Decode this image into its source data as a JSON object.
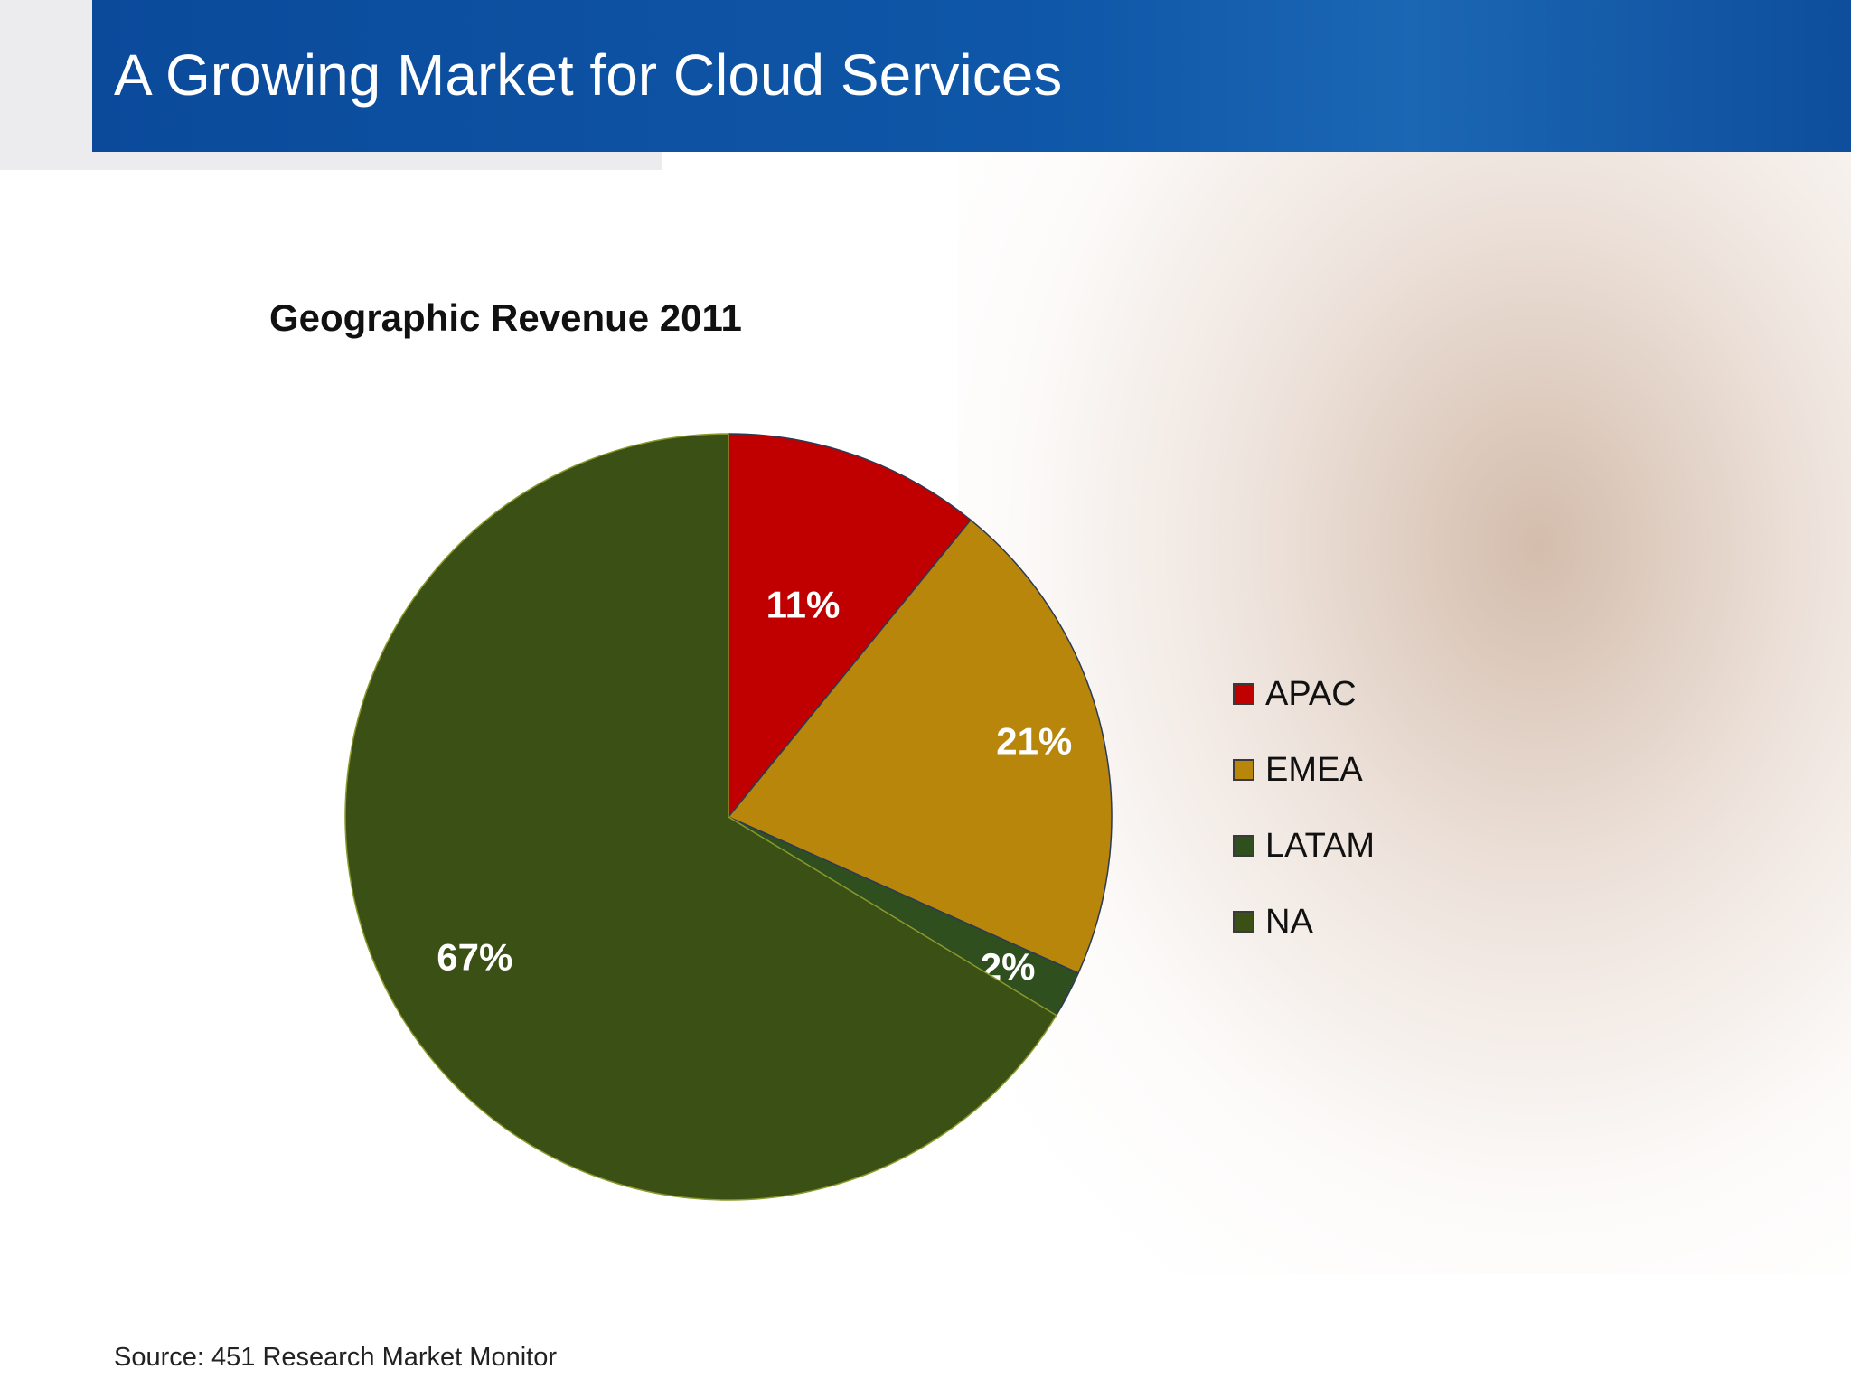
{
  "slide": {
    "title": "A Growing Market for Cloud Services",
    "source": "Source: 451 Research Market Monitor"
  },
  "colors": {
    "title_bar": "#0f57a8",
    "APAC": "#c00000",
    "EMEA": "#b8860b",
    "LATAM": "#2f4f1f",
    "NA": "#3a5014"
  },
  "chart_data": {
    "type": "pie",
    "title": "Geographic Revenue 2011",
    "categories": [
      "APAC",
      "EMEA",
      "LATAM",
      "NA"
    ],
    "values": [
      11,
      21,
      2,
      67
    ],
    "data_labels": [
      "11%",
      "21%",
      "2%",
      "67%"
    ],
    "colors": [
      "#c00000",
      "#b8860b",
      "#2f4f1f",
      "#3a5014"
    ],
    "legend_position": "right"
  }
}
